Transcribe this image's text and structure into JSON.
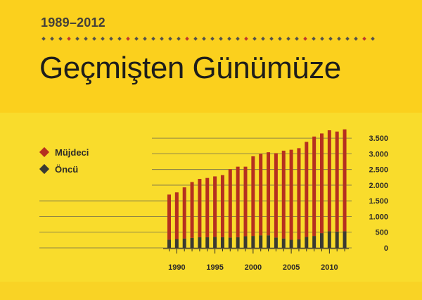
{
  "header": {
    "years": "1989–2012",
    "title": "Geçmişten Günümüze"
  },
  "legend": [
    {
      "label": "Müjdeci",
      "color": "#b5301f"
    },
    {
      "label": "Öncü",
      "color": "#3a3a32"
    }
  ],
  "colors": {
    "background": "#f9dc2c",
    "accent_red": "#b5301f",
    "dark": "#3a3a32",
    "dot_red": "#c0392b",
    "dot_dark": "#55524a"
  },
  "chart_data": {
    "type": "bar",
    "stacked": true,
    "title": "",
    "xlabel": "",
    "ylabel": "",
    "x": [
      1989,
      1990,
      1991,
      1992,
      1993,
      1994,
      1995,
      1996,
      1997,
      1998,
      1999,
      2000,
      2001,
      2002,
      2003,
      2004,
      2005,
      2006,
      2007,
      2008,
      2009,
      2010,
      2011,
      2012
    ],
    "x_ticks": [
      1990,
      1995,
      2000,
      2005,
      2010
    ],
    "y_ticks": [
      0,
      500,
      1000,
      1500,
      2000,
      2500,
      3000,
      3500
    ],
    "y_tick_labels": [
      "0",
      "500",
      "1.000",
      "1.500",
      "2.000",
      "2.500",
      "3.000",
      "3.500"
    ],
    "ylim": [
      0,
      3750
    ],
    "series": [
      {
        "name": "Öncü",
        "color": "#3a3a32",
        "values": [
          260,
          280,
          300,
          320,
          340,
          340,
          350,
          340,
          330,
          340,
          370,
          380,
          400,
          400,
          330,
          300,
          260,
          270,
          350,
          380,
          470,
          530,
          520,
          530
        ]
      },
      {
        "name": "Müjdeci",
        "color": "#b5301f",
        "values": [
          1440,
          1490,
          1630,
          1780,
          1860,
          1890,
          1930,
          1980,
          2180,
          2250,
          2220,
          2540,
          2600,
          2650,
          2690,
          2800,
          2870,
          2910,
          3030,
          3170,
          3180,
          3220,
          3190,
          3250
        ]
      }
    ],
    "legend_position": "top-left",
    "grid": true
  }
}
